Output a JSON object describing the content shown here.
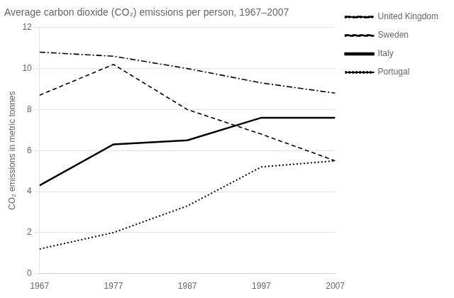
{
  "chart_data": {
    "type": "line",
    "title": "Average carbon dioxide (CO₂) emissions per person, 1967–2007",
    "ylabel": "CO₂ emissions in metric tonnes",
    "x": [
      1967,
      1977,
      1987,
      1997,
      2007
    ],
    "series": [
      {
        "name": "United Kingdom",
        "color": "#000000",
        "line_style": "dashdot",
        "values": [
          10.8,
          10.6,
          10.0,
          9.3,
          8.8
        ]
      },
      {
        "name": "Sweden",
        "color": "#000000",
        "line_style": "dashed",
        "values": [
          8.7,
          10.2,
          8.0,
          6.8,
          5.5
        ]
      },
      {
        "name": "Italy",
        "color": "#000000",
        "line_style": "solid",
        "values": [
          4.3,
          6.3,
          6.5,
          7.6,
          7.6
        ]
      },
      {
        "name": "Portugal",
        "color": "#000000",
        "line_style": "dotted",
        "values": [
          1.2,
          2.0,
          3.3,
          5.2,
          5.5
        ]
      }
    ],
    "xlim": [
      1967,
      2007
    ],
    "xticks": [
      1967,
      1977,
      1987,
      1997,
      2007
    ],
    "ylim": [
      0,
      12
    ],
    "yticks": [
      0,
      2,
      4,
      6,
      8,
      10,
      12
    ],
    "grid": "y",
    "legend": "right"
  }
}
